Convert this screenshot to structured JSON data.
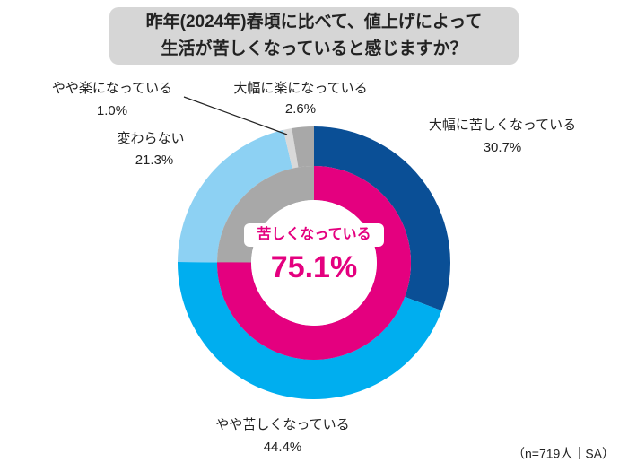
{
  "chart_data": {
    "type": "donut",
    "title": [
      "昨年(2024年)春頃に比べて、値上げによって",
      "生活が苦しくなっていると感じますか？"
    ],
    "categories": [
      "大幅に苦しくなっている",
      "やや苦しくなっている",
      "変わらない",
      "やや楽になっている",
      "大幅に楽になっている"
    ],
    "values": [
      30.7,
      44.4,
      21.3,
      1.0,
      2.6
    ],
    "value_labels": [
      "30.7%",
      "44.4%",
      "21.3%",
      "1.0%",
      "2.6%"
    ],
    "colors": [
      "#0a4f96",
      "#00aeef",
      "#8dd1f3",
      "#d9d9d9",
      "#a8a8a8"
    ],
    "inner": {
      "label": "苦しくなっている",
      "value": 75.1,
      "value_label": "75.1%",
      "color": "#e4007f",
      "rest_color": "#a8a8a8"
    },
    "note": "（n=719人｜SA）"
  }
}
